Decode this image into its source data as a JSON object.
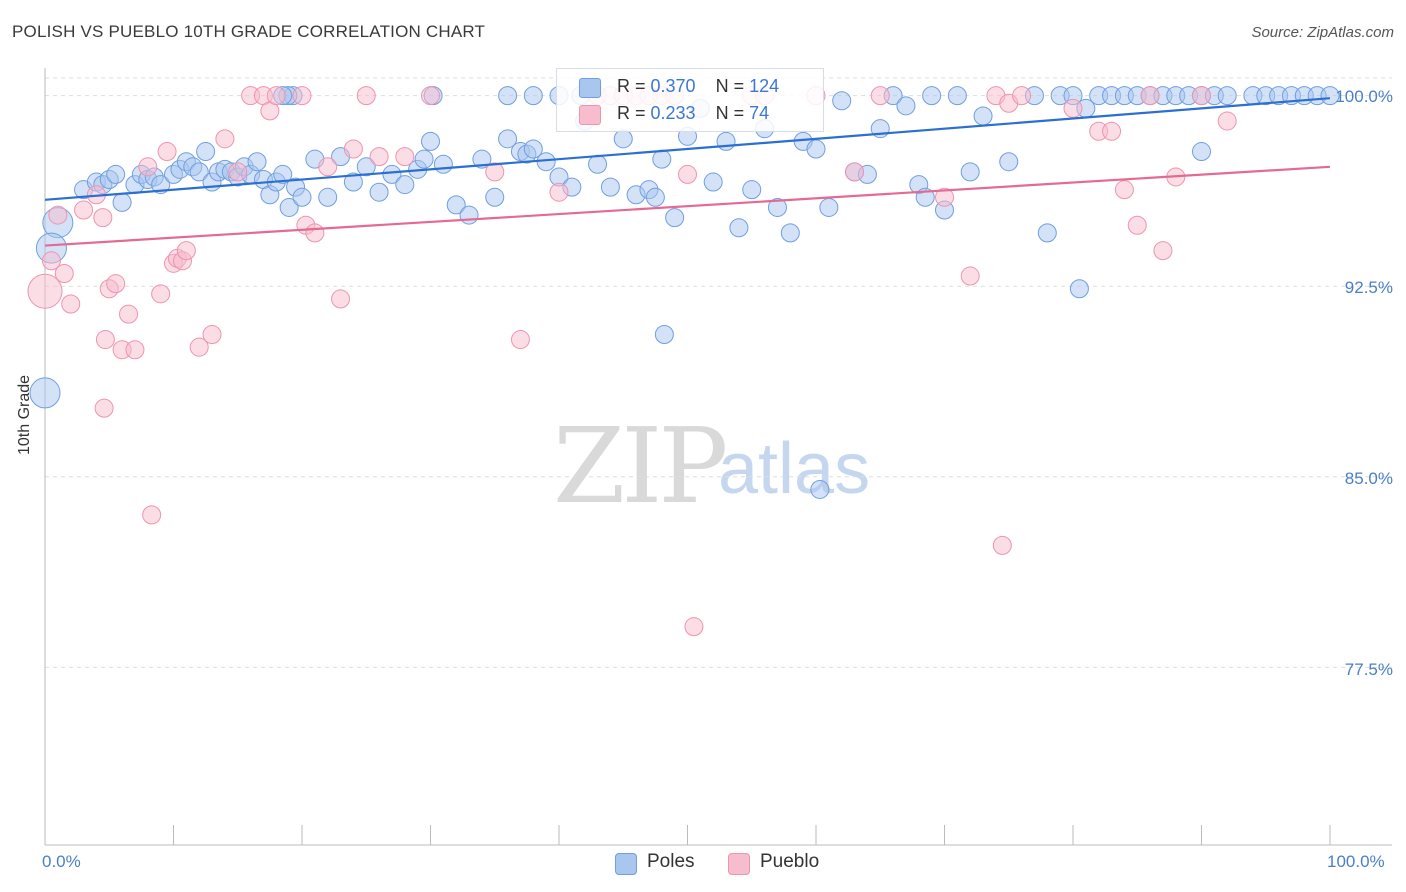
{
  "header": {
    "title": "POLISH VS PUEBLO 10TH GRADE CORRELATION CHART",
    "source": "Source: ZipAtlas.com"
  },
  "watermark": {
    "zip": "ZIP",
    "atlas": "atlas"
  },
  "legend": {
    "poles": {
      "r_label": "R = ",
      "r_value": "0.370",
      "n_label": "N = ",
      "n_value": "124"
    },
    "pueblo": {
      "r_label": "R = ",
      "r_value": "0.233",
      "n_label": "N = ",
      "n_value": "74"
    }
  },
  "bottom_legend": {
    "poles": "Poles",
    "pueblo": "Pueblo"
  },
  "colors": {
    "poles_fill": "#a9c6ef",
    "poles_stroke": "#6f9fe0",
    "poles_line": "#2b6fd1",
    "pueblo_fill": "#f7bccd",
    "pueblo_stroke": "#ee94b0",
    "pueblo_line": "#e46a93",
    "tick_text": "#4a7fc7",
    "grid": "#dddddd"
  },
  "chart_data": {
    "type": "scatter",
    "title": "POLISH VS PUEBLO 10TH GRADE CORRELATION CHART",
    "xlabel": "",
    "ylabel": "10th Grade",
    "xlim": [
      0,
      100
    ],
    "ylim": [
      70.9,
      101.6
    ],
    "x_ticks": [
      "0.0%",
      "100.0%"
    ],
    "y_ticks": [
      {
        "value": 100.0,
        "label": "100.0%"
      },
      {
        "value": 92.5,
        "label": "92.5%"
      },
      {
        "value": 85.0,
        "label": "85.0%"
      },
      {
        "value": 77.5,
        "label": "77.5%"
      }
    ],
    "grid": "horizontal dashed",
    "legend_placement": "top-center and bottom",
    "series": [
      {
        "name": "Poles",
        "r": 0.37,
        "n": 124,
        "trend": {
          "x": [
            0,
            100
          ],
          "y": [
            95.9,
            99.9
          ]
        },
        "points": [
          [
            3,
            96.3
          ],
          [
            4,
            96.6
          ],
          [
            4.5,
            96.5
          ],
          [
            5,
            96.7
          ],
          [
            5.5,
            96.9
          ],
          [
            6,
            95.8
          ],
          [
            7,
            96.5
          ],
          [
            7.5,
            96.9
          ],
          [
            8,
            96.7
          ],
          [
            8.5,
            96.8
          ],
          [
            9,
            96.5
          ],
          [
            10,
            96.9
          ],
          [
            10.5,
            97.1
          ],
          [
            11,
            97.4
          ],
          [
            11.5,
            97.2
          ],
          [
            12,
            97.0
          ],
          [
            12.5,
            97.8
          ],
          [
            13,
            96.6
          ],
          [
            13.5,
            97.0
          ],
          [
            14,
            97.1
          ],
          [
            14.5,
            97.0
          ],
          [
            15,
            96.8
          ],
          [
            15.5,
            97.2
          ],
          [
            16,
            96.9
          ],
          [
            16.5,
            97.4
          ],
          [
            17,
            96.7
          ],
          [
            17.5,
            96.1
          ],
          [
            18,
            96.6
          ],
          [
            18.5,
            96.9
          ],
          [
            19,
            95.6
          ],
          [
            19.5,
            96.4
          ],
          [
            20,
            96.0
          ],
          [
            21,
            97.5
          ],
          [
            22,
            96.0
          ],
          [
            23,
            97.6
          ],
          [
            24,
            96.6
          ],
          [
            25,
            97.2
          ],
          [
            26,
            96.2
          ],
          [
            27,
            96.9
          ],
          [
            28,
            96.5
          ],
          [
            29,
            97.1
          ],
          [
            29.5,
            97.5
          ],
          [
            30,
            98.2
          ],
          [
            31,
            97.3
          ],
          [
            32,
            95.7
          ],
          [
            33,
            95.3
          ],
          [
            34,
            97.5
          ],
          [
            35,
            96.0
          ],
          [
            36,
            98.3
          ],
          [
            37,
            97.8
          ],
          [
            37.5,
            97.7
          ],
          [
            38,
            97.9
          ],
          [
            39,
            97.4
          ],
          [
            40,
            96.8
          ],
          [
            41,
            96.4
          ],
          [
            42,
            99.0
          ],
          [
            43,
            97.3
          ],
          [
            44,
            96.4
          ],
          [
            45,
            98.3
          ],
          [
            46,
            96.1
          ],
          [
            47,
            96.3
          ],
          [
            47.5,
            96.0
          ],
          [
            48,
            97.5
          ],
          [
            49,
            95.2
          ],
          [
            50,
            98.4
          ],
          [
            51,
            99.5
          ],
          [
            52,
            96.6
          ],
          [
            53,
            98.2
          ],
          [
            54,
            94.8
          ],
          [
            55,
            96.3
          ],
          [
            56,
            98.7
          ],
          [
            57,
            95.6
          ],
          [
            58,
            94.6
          ],
          [
            59,
            98.2
          ],
          [
            60,
            97.9
          ],
          [
            61,
            95.6
          ],
          [
            62,
            99.8
          ],
          [
            63,
            97.0
          ],
          [
            64,
            96.9
          ],
          [
            65,
            98.7
          ],
          [
            66,
            100
          ],
          [
            67,
            99.6
          ],
          [
            68,
            96.5
          ],
          [
            68.5,
            96.0
          ],
          [
            69,
            100
          ],
          [
            70,
            95.5
          ],
          [
            71,
            100
          ],
          [
            72,
            97.0
          ],
          [
            73,
            99.2
          ],
          [
            75,
            97.4
          ],
          [
            77,
            100
          ],
          [
            78,
            94.6
          ],
          [
            79,
            100
          ],
          [
            80,
            100
          ],
          [
            81,
            99.5
          ],
          [
            82,
            100
          ],
          [
            83,
            100
          ],
          [
            84,
            100
          ],
          [
            85,
            100
          ],
          [
            86,
            100
          ],
          [
            87,
            100
          ],
          [
            88,
            100
          ],
          [
            89,
            100
          ],
          [
            90,
            100
          ],
          [
            91,
            100
          ],
          [
            92,
            100
          ],
          [
            94,
            100
          ],
          [
            95,
            100
          ],
          [
            96,
            100
          ],
          [
            97,
            100
          ],
          [
            98,
            100
          ],
          [
            99,
            100
          ],
          [
            100,
            100
          ],
          [
            80.5,
            92.4
          ],
          [
            90,
            97.8
          ],
          [
            48.2,
            90.6
          ],
          [
            60.3,
            84.5
          ],
          [
            41.7,
            100
          ],
          [
            40,
            100
          ],
          [
            38,
            100
          ],
          [
            36,
            100
          ],
          [
            30.2,
            100
          ],
          [
            19.3,
            100
          ],
          [
            18.9,
            100
          ],
          [
            18.5,
            100
          ],
          [
            1,
            95.0
          ],
          [
            0.5,
            94.0
          ],
          [
            0,
            88.3
          ]
        ]
      },
      {
        "name": "Pueblo",
        "r": 0.233,
        "n": 74,
        "trend": {
          "x": [
            0,
            100
          ],
          "y": [
            94.1,
            97.2
          ]
        },
        "points": [
          [
            0,
            92.3
          ],
          [
            0.5,
            93.5
          ],
          [
            1,
            95.3
          ],
          [
            1.5,
            93.0
          ],
          [
            2,
            91.8
          ],
          [
            3,
            95.5
          ],
          [
            4,
            96.1
          ],
          [
            4.5,
            95.2
          ],
          [
            4.6,
            87.7
          ],
          [
            4.7,
            90.4
          ],
          [
            5,
            92.4
          ],
          [
            5.5,
            92.6
          ],
          [
            6,
            90.0
          ],
          [
            6.5,
            91.4
          ],
          [
            7,
            90.0
          ],
          [
            8,
            97.2
          ],
          [
            8.3,
            83.5
          ],
          [
            9,
            92.2
          ],
          [
            9.5,
            97.8
          ],
          [
            10,
            93.4
          ],
          [
            10.3,
            93.6
          ],
          [
            10.7,
            93.5
          ],
          [
            11,
            93.9
          ],
          [
            12,
            90.1
          ],
          [
            13,
            90.6
          ],
          [
            14,
            98.3
          ],
          [
            15,
            97.0
          ],
          [
            16,
            100
          ],
          [
            17,
            100
          ],
          [
            17.5,
            99.4
          ],
          [
            18,
            100
          ],
          [
            20,
            100
          ],
          [
            20.3,
            94.9
          ],
          [
            21,
            94.6
          ],
          [
            22,
            97.2
          ],
          [
            23,
            92.0
          ],
          [
            24,
            97.9
          ],
          [
            25,
            100
          ],
          [
            26,
            97.6
          ],
          [
            28,
            97.6
          ],
          [
            30,
            100
          ],
          [
            35,
            97.0
          ],
          [
            37,
            90.4
          ],
          [
            40,
            96.2
          ],
          [
            43,
            100
          ],
          [
            44,
            100
          ],
          [
            45,
            100
          ],
          [
            46,
            100
          ],
          [
            47,
            100
          ],
          [
            48,
            100
          ],
          [
            49,
            100
          ],
          [
            50,
            96.9
          ],
          [
            50.5,
            79.1
          ],
          [
            55,
            100
          ],
          [
            56,
            100
          ],
          [
            60,
            100
          ],
          [
            63,
            97.0
          ],
          [
            65,
            100
          ],
          [
            70,
            96.0
          ],
          [
            72,
            92.9
          ],
          [
            74,
            100
          ],
          [
            74.5,
            82.3
          ],
          [
            75,
            99.7
          ],
          [
            76,
            100
          ],
          [
            80,
            99.5
          ],
          [
            82,
            98.6
          ],
          [
            83,
            98.6
          ],
          [
            84,
            96.3
          ],
          [
            85,
            94.9
          ],
          [
            86,
            100
          ],
          [
            87,
            93.9
          ],
          [
            88,
            96.8
          ],
          [
            90,
            100
          ],
          [
            92,
            99.0
          ]
        ]
      }
    ]
  }
}
